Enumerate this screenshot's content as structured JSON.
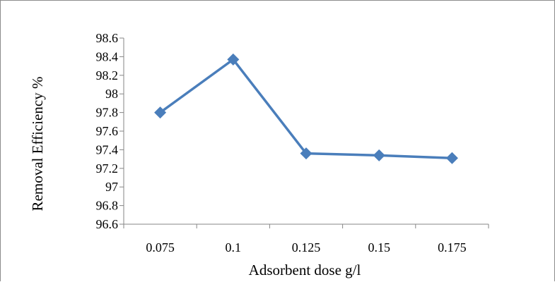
{
  "chart_data": {
    "type": "line",
    "title": "",
    "xlabel": "Adsorbent dose g/l",
    "ylabel": "Removal Efficiency %",
    "categories": [
      "0.075",
      "0.1",
      "0.125",
      "0.15",
      "0.175"
    ],
    "series": [
      {
        "values": [
          97.8,
          98.37,
          97.36,
          97.34,
          97.31
        ]
      }
    ],
    "ylim": [
      96.6,
      98.6
    ],
    "yticks": [
      96.6,
      96.8,
      97,
      97.2,
      97.4,
      97.6,
      97.8,
      98,
      98.2,
      98.4,
      98.6
    ],
    "ytick_labels": [
      "96.6",
      "96.8",
      "97",
      "97.2",
      "97.4",
      "97.6",
      "97.8",
      "98",
      "98.2",
      "98.4",
      "98.6"
    ],
    "grid": false,
    "legend": "none",
    "marker": "diamond",
    "colors": {
      "series": "#4a7ebb",
      "axis": "#868686"
    }
  }
}
